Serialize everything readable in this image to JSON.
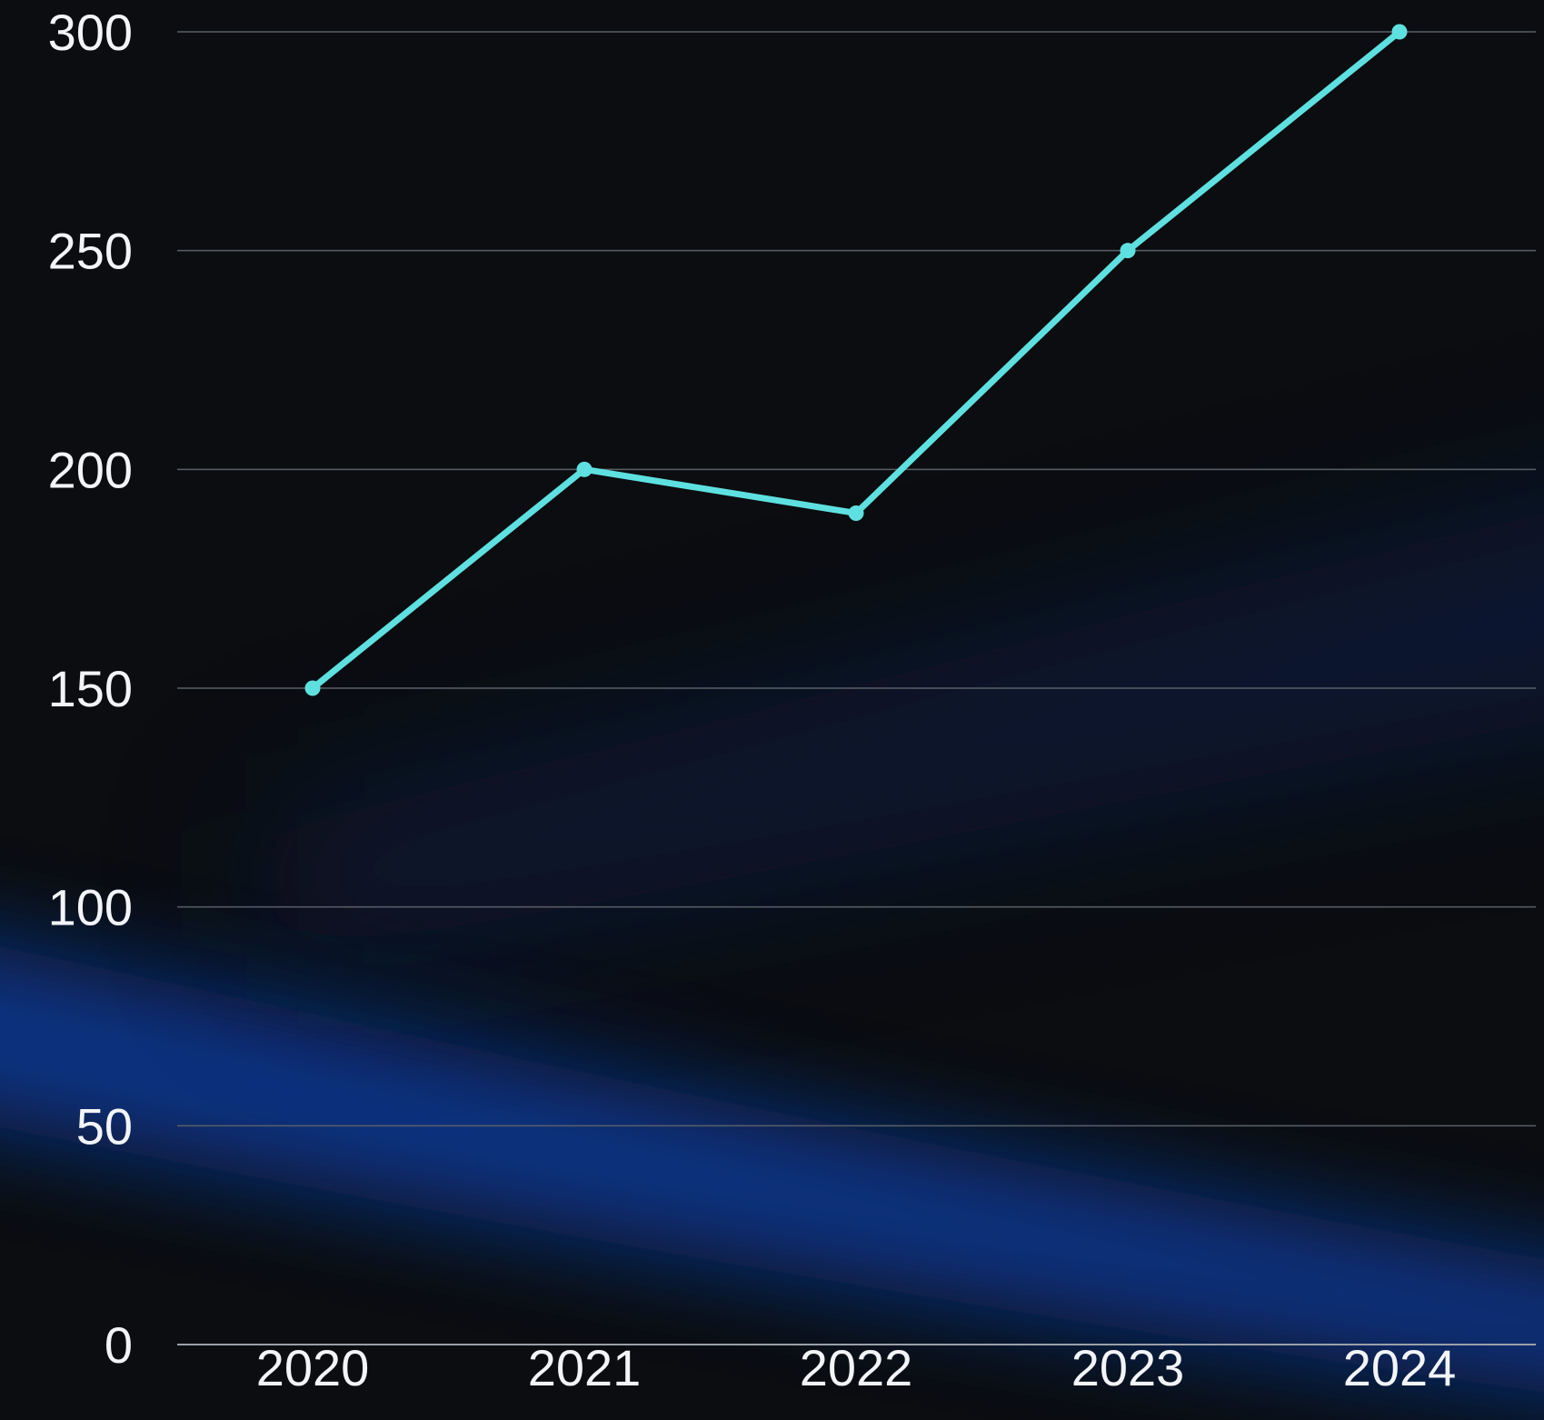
{
  "chart_data": {
    "type": "line",
    "title": "",
    "xlabel": "",
    "ylabel": "",
    "categories": [
      "2020",
      "2021",
      "2022",
      "2023",
      "2024"
    ],
    "series": [
      {
        "values": [
          150,
          200,
          190,
          250,
          300
        ]
      }
    ],
    "ylim": [
      0,
      300
    ],
    "yticks": [
      "0",
      "50",
      "100",
      "150",
      "200",
      "250",
      "300"
    ],
    "grid": "horizontal",
    "legend": "none",
    "colors": {
      "background": "#0b0d10",
      "line": "#5ee0e0",
      "grid": "#5a6068",
      "glow": "#0a3a9a",
      "text": "#f2f4f7"
    }
  }
}
